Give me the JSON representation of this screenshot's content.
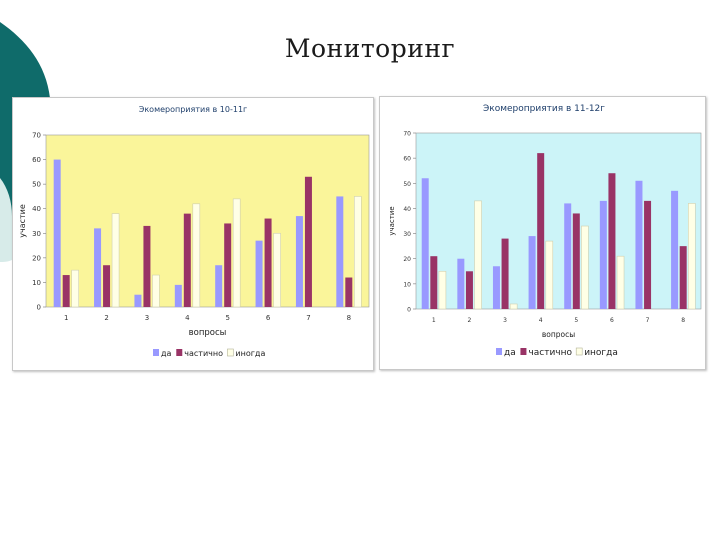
{
  "slide": {
    "title": "Мониторинг",
    "colors": {
      "theme_teal": "#0f6b6a",
      "theme_light": "#d7ebe9"
    }
  },
  "chart_data": [
    {
      "type": "bar",
      "title": "Экомероприятия в 10-11г",
      "xlabel": "вопросы",
      "ylabel": "участие",
      "categories": [
        "1",
        "2",
        "3",
        "4",
        "5",
        "6",
        "7",
        "8"
      ],
      "ylim": [
        0,
        70
      ],
      "yticks": [
        0,
        10,
        20,
        30,
        40,
        50,
        60,
        70
      ],
      "grid": false,
      "legend": "bottom",
      "plot_background": "#faf59a",
      "series": [
        {
          "name": "да",
          "color": "#9999ff",
          "values": [
            60,
            32,
            5,
            9,
            17,
            27,
            37,
            45
          ]
        },
        {
          "name": "частично",
          "color": "#993366",
          "values": [
            13,
            17,
            33,
            38,
            34,
            36,
            53,
            12
          ]
        },
        {
          "name": "иногда",
          "color": "#ffffe6",
          "values": [
            15,
            38,
            13,
            42,
            44,
            30,
            0,
            45
          ]
        }
      ]
    },
    {
      "type": "bar",
      "title": "Экомероприятия в 11-12г",
      "xlabel": "вопросы",
      "ylabel": "участие",
      "categories": [
        "1",
        "2",
        "3",
        "4",
        "5",
        "6",
        "7",
        "8"
      ],
      "ylim": [
        0,
        70
      ],
      "yticks": [
        0,
        10,
        20,
        30,
        40,
        50,
        60,
        70
      ],
      "grid": false,
      "legend": "bottom",
      "plot_background": "#ccf4f8",
      "series": [
        {
          "name": "да",
          "color": "#9999ff",
          "values": [
            52,
            20,
            17,
            29,
            42,
            43,
            51,
            47
          ]
        },
        {
          "name": "частично",
          "color": "#993366",
          "values": [
            21,
            15,
            28,
            62,
            38,
            54,
            43,
            25
          ]
        },
        {
          "name": "иногда",
          "color": "#ffffe6",
          "values": [
            15,
            43,
            2,
            27,
            33,
            21,
            0,
            42
          ]
        }
      ]
    }
  ]
}
